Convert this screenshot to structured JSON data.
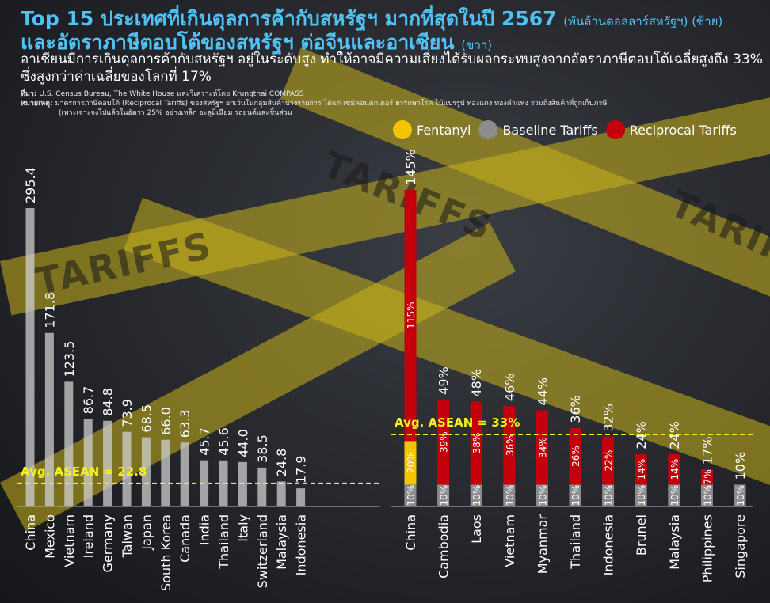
{
  "title_line1": "Top 15 ประเทศที่เกินดุลการค้ากับสหรัฐฯ มากที่สุดในปี 2567",
  "title_line1_unit": "(พันล้านดอลลาร์สหรัฐฯ) (ซ้าย)",
  "title_line2": "และอัตราภาษีตอบโต้ของสหรัฐฯ ต่อจีนและอาเซียน",
  "title_line2_unit": "(ขวา)",
  "subtitle": "อาเซียนมีการเกินดุลการค้ากับสหรัฐฯ อยู่ในระดับสูง ทำให้อาจมีความเสี่ยงได้รับผลกระทบสูงจากอัตราภาษีตอบโต้เฉลี่ยสูงถึง 33% ซึ่งสูงกว่าค่าเฉลี่ยของโลกที่ 17%",
  "source_label": "ที่มา:",
  "source_text": "U.S. Census Bureau, The White House และวิเคราะห์โดย Krungthai COMPASS",
  "note_label": "หมายเหตุ:",
  "note_text_1": "มาตรการภาษีตอบโต้ (Reciprocal Tariffs) ของสหรัฐฯ ยกเว้นในกลุ่มสินค้าบางรายการ ได้แก่ เซมิคอนดักเตอร์ ยารักษาโรค ไม้แปรรูป ทองแดง ทองคำแท่ง รวมถึงสินค้าที่ถูกเก็บภาษี",
  "note_text_2": "(เพาะเจาะจงไปแล้วในอัตรา 25% อย่างเหล็ก อะลูมิเนียม รถยนต์และชิ้นส่วน",
  "decor_text": "TARIFFS",
  "colors": {
    "fentanyl": "#f5c400",
    "baseline": "#8c8c8c",
    "reciprocal": "#c4000c",
    "avg_line": "#f2f21a",
    "surplus_bar": "#cfcfcf"
  },
  "legend": [
    {
      "key": "fentanyl",
      "label": "Fentanyl"
    },
    {
      "key": "baseline",
      "label": "Baseline Tariffs"
    },
    {
      "key": "reciprocal",
      "label": "Reciprocal Tariffs"
    }
  ],
  "chart_data": [
    {
      "type": "bar",
      "title": "Top 15 ประเทศที่เกินดุลการค้ากับสหรัฐฯ มากที่สุดในปี 2567",
      "unit": "พันล้านดอลลาร์สหรัฐฯ",
      "categories": [
        "China",
        "Mexico",
        "Vietnam",
        "Ireland",
        "Germany",
        "Taiwan",
        "Japan",
        "South Korea",
        "Canada",
        "India",
        "Thailand",
        "Italy",
        "Switzerland",
        "Malaysia",
        "Indonesia"
      ],
      "values": [
        295.4,
        171.8,
        123.5,
        86.7,
        84.8,
        73.9,
        68.5,
        66.0,
        63.3,
        45.7,
        45.6,
        44.0,
        38.5,
        24.8,
        17.9
      ],
      "value_labels": [
        "295.4",
        "171.8",
        "123.5",
        "86.7",
        "84.8",
        "73.9",
        "68.5",
        "66.0",
        "63.3",
        "45.7",
        "45.6",
        "44.0",
        "38.5",
        "24.8",
        "17.9"
      ],
      "reference_line": {
        "value": 22.8,
        "label": "Avg. ASEAN = 22.8"
      },
      "ylim": [
        0,
        300
      ],
      "grid": false
    },
    {
      "type": "bar",
      "stacked": true,
      "title": "อัตราภาษีตอบโต้ของสหรัฐฯ ต่อจีนและอาเซียน",
      "categories": [
        "China",
        "Cambodia",
        "Laos",
        "Vietnam",
        "Myanmar",
        "Thailand",
        "Indonesia",
        "Brunei",
        "Malaysia",
        "Philippines",
        "Singapore"
      ],
      "series": [
        {
          "name": "Baseline Tariffs",
          "key": "baseline",
          "values": [
            10,
            10,
            10,
            10,
            10,
            10,
            10,
            10,
            10,
            10,
            10
          ]
        },
        {
          "name": "Fentanyl",
          "key": "fentanyl",
          "values": [
            20,
            0,
            0,
            0,
            0,
            0,
            0,
            0,
            0,
            0,
            0
          ]
        },
        {
          "name": "Reciprocal Tariffs",
          "key": "reciprocal",
          "values": [
            115,
            39,
            38,
            36,
            34,
            26,
            22,
            14,
            14,
            7,
            0
          ]
        }
      ],
      "segment_labels": {
        "baseline": [
          "10%",
          "10%",
          "10%",
          "10%",
          "10%",
          "10%",
          "10%",
          "10%",
          "10%",
          "10%",
          "10%"
        ],
        "fentanyl": [
          "20%",
          "",
          "",
          "",
          "",
          "",
          "",
          "",
          "",
          "",
          ""
        ],
        "reciprocal": [
          "115%",
          "39%",
          "38%",
          "36%",
          "34%",
          "26%",
          "22%",
          "14%",
          "14%",
          "7%",
          ""
        ]
      },
      "totals": [
        145,
        49,
        48,
        46,
        44,
        36,
        32,
        24,
        24,
        17,
        10
      ],
      "total_labels": [
        "145%",
        "49%",
        "48%",
        "46%",
        "44%",
        "36%",
        "32%",
        "24%",
        "24%",
        "17%",
        "10%"
      ],
      "reference_line": {
        "value": 33,
        "label": "Avg. ASEAN = 33%"
      },
      "ylim": [
        0,
        150
      ],
      "legend_position": "top",
      "grid": false
    }
  ]
}
